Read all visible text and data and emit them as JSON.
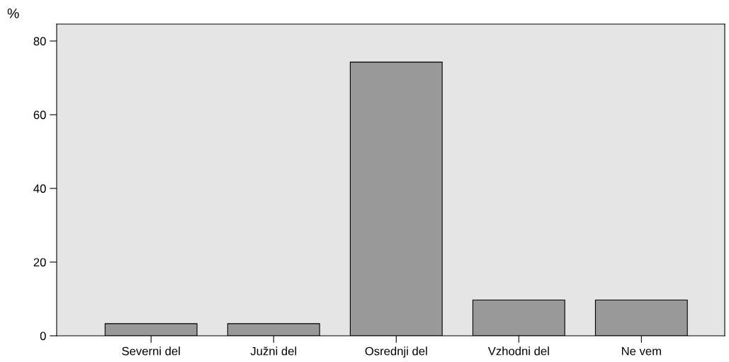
{
  "chart_data": {
    "type": "bar",
    "ylabel": "%",
    "categories": [
      "Severni del",
      "Južni del",
      "Osrednji del",
      "Vzhodni del",
      "Ne vem"
    ],
    "values": [
      3.3,
      3.3,
      74.3,
      9.7,
      9.7
    ],
    "color": "#999999",
    "ylim": [
      0,
      84.6
    ],
    "yticks": [
      0,
      20,
      40,
      60,
      80
    ],
    "grid": false
  }
}
